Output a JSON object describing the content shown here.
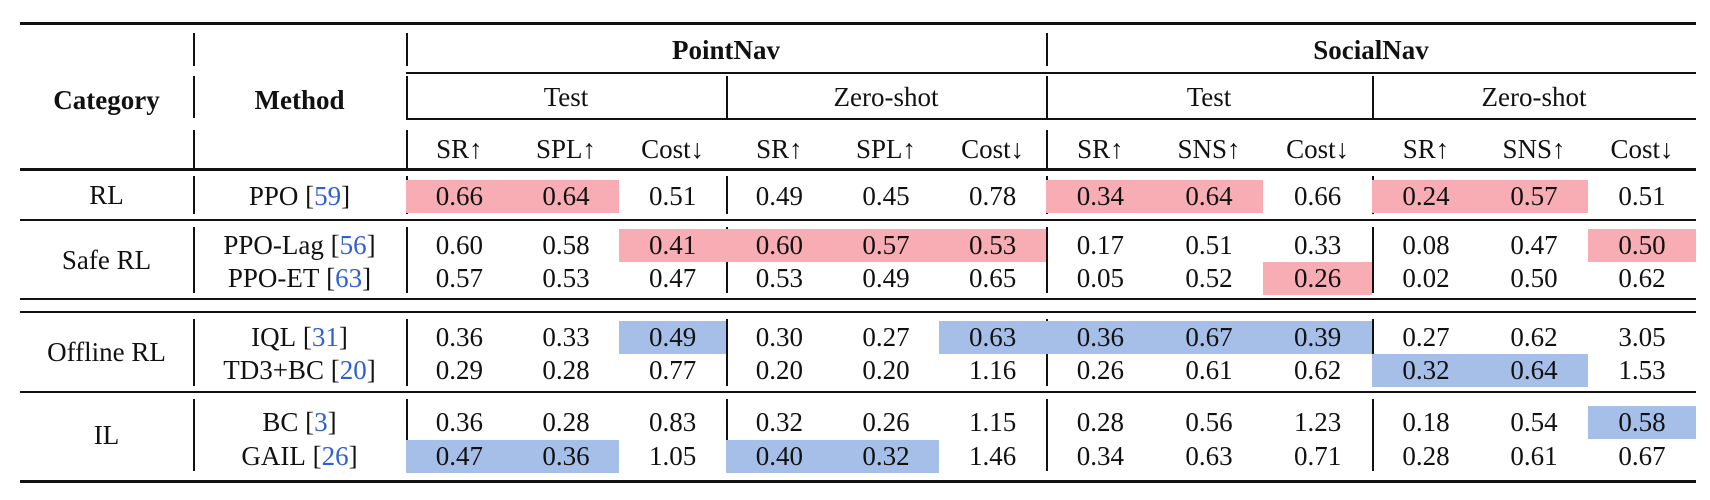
{
  "table": {
    "header": {
      "category": "Category",
      "method": "Method",
      "groups": [
        {
          "name": "PointNav",
          "subgroups": [
            {
              "name": "Test",
              "metrics": [
                "SR↑",
                "SPL↑",
                "Cost↓"
              ]
            },
            {
              "name": "Zero-shot",
              "metrics": [
                "SR↑",
                "SPL↑",
                "Cost↓"
              ]
            }
          ]
        },
        {
          "name": "SocialNav",
          "subgroups": [
            {
              "name": "Test",
              "metrics": [
                "SR↑",
                "SNS↑",
                "Cost↓"
              ]
            },
            {
              "name": "Zero-shot",
              "metrics": [
                "SR↑",
                "SNS↑",
                "Cost↓"
              ]
            }
          ]
        }
      ]
    },
    "highlight_colors": {
      "red": "#f7adb3",
      "blue": "#a6bfe8"
    },
    "categories": [
      {
        "name": "RL",
        "rows": [
          {
            "method": "PPO",
            "cite": "59",
            "values": [
              "0.66",
              "0.64",
              "0.51",
              "0.49",
              "0.45",
              "0.78",
              "0.34",
              "0.64",
              "0.66",
              "0.24",
              "0.57",
              "0.51"
            ],
            "highlight": [
              "red",
              "red",
              "",
              "",
              "",
              "",
              "red",
              "red",
              "",
              "red",
              "red",
              ""
            ]
          }
        ]
      },
      {
        "name": "Safe RL",
        "rows": [
          {
            "method": "PPO-Lag",
            "cite": "56",
            "values": [
              "0.60",
              "0.58",
              "0.41",
              "0.60",
              "0.57",
              "0.53",
              "0.17",
              "0.51",
              "0.33",
              "0.08",
              "0.47",
              "0.50"
            ],
            "highlight": [
              "",
              "",
              "red",
              "red",
              "red",
              "red",
              "",
              "",
              "",
              "",
              "",
              "red"
            ]
          },
          {
            "method": "PPO-ET",
            "cite": "63",
            "values": [
              "0.57",
              "0.53",
              "0.47",
              "0.53",
              "0.49",
              "0.65",
              "0.05",
              "0.52",
              "0.26",
              "0.02",
              "0.50",
              "0.62"
            ],
            "highlight": [
              "",
              "",
              "",
              "",
              "",
              "",
              "",
              "",
              "red",
              "",
              "",
              ""
            ]
          }
        ]
      },
      {
        "name": "Offline RL",
        "rows": [
          {
            "method": "IQL",
            "cite": "31",
            "values": [
              "0.36",
              "0.33",
              "0.49",
              "0.30",
              "0.27",
              "0.63",
              "0.36",
              "0.67",
              "0.39",
              "0.27",
              "0.62",
              "3.05"
            ],
            "highlight": [
              "",
              "",
              "blue",
              "",
              "",
              "blue",
              "blue",
              "blue",
              "blue",
              "",
              "",
              ""
            ]
          },
          {
            "method": "TD3+BC",
            "cite": "20",
            "values": [
              "0.29",
              "0.28",
              "0.77",
              "0.20",
              "0.20",
              "1.16",
              "0.26",
              "0.61",
              "0.62",
              "0.32",
              "0.64",
              "1.53"
            ],
            "highlight": [
              "",
              "",
              "",
              "",
              "",
              "",
              "",
              "",
              "",
              "blue",
              "blue",
              ""
            ]
          }
        ]
      },
      {
        "name": "IL",
        "rows": [
          {
            "method": "BC",
            "cite": "3",
            "values": [
              "0.36",
              "0.28",
              "0.83",
              "0.32",
              "0.26",
              "1.15",
              "0.28",
              "0.56",
              "1.23",
              "0.18",
              "0.54",
              "0.58"
            ],
            "highlight": [
              "",
              "",
              "",
              "",
              "",
              "",
              "",
              "",
              "",
              "",
              "",
              "blue"
            ]
          },
          {
            "method": "GAIL",
            "cite": "26",
            "values": [
              "0.47",
              "0.36",
              "1.05",
              "0.40",
              "0.32",
              "1.46",
              "0.34",
              "0.63",
              "0.71",
              "0.28",
              "0.61",
              "0.67"
            ],
            "highlight": [
              "blue",
              "blue",
              "",
              "blue",
              "blue",
              "",
              "",
              "",
              "",
              "",
              "",
              ""
            ]
          }
        ]
      }
    ]
  }
}
